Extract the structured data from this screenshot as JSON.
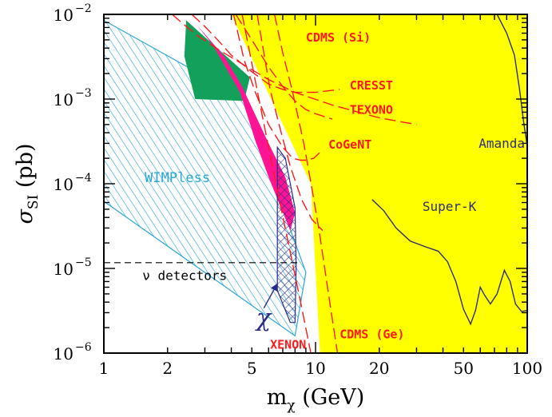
{
  "chart_data": {
    "type": "exclusion-plot",
    "xlabel": {
      "base": "m",
      "sub": "χ",
      "rest": " (GeV)"
    },
    "ylabel": {
      "base": "σ",
      "sub": "SI",
      "rest": " (pb)"
    },
    "x_scale": "log",
    "y_scale": "log",
    "xlim": [
      1,
      100
    ],
    "ylim": [
      1e-06,
      0.01
    ],
    "x_ticks": [
      {
        "v": 1,
        "label": "1"
      },
      {
        "v": 2,
        "label": "2"
      },
      {
        "v": 5,
        "label": "5"
      },
      {
        "v": 10,
        "label": "10"
      },
      {
        "v": 20,
        "label": "20"
      },
      {
        "v": 50,
        "label": "50"
      },
      {
        "v": 100,
        "label": "100"
      }
    ],
    "y_ticks": [
      {
        "v": 1e-06,
        "exp": "−6"
      },
      {
        "v": 1e-05,
        "exp": "−5"
      },
      {
        "v": 0.0001,
        "exp": "−4"
      },
      {
        "v": 0.001,
        "exp": "−3"
      },
      {
        "v": 0.01,
        "exp": "−2"
      }
    ],
    "tick_base": "10",
    "colors": {
      "excluded": "#ffff00",
      "limit_lines": "#ff1a1a",
      "label_red": "#ff1a1a",
      "label_navy": "#2e2e6e",
      "wimpless": "#29a8d8",
      "green_region": "#12a05a",
      "magenta_region": "#ff1493",
      "chi_hatch": "#2a2a8a",
      "neutrino_line": "#000000"
    },
    "excluded_region": [
      [
        2.1,
        0.01
      ],
      [
        4.0,
        0.01
      ],
      [
        9.5,
        0.0001
      ],
      [
        10.5,
        1e-06
      ],
      [
        100,
        1e-06
      ],
      [
        100,
        0.01
      ]
    ],
    "limit_curves": [
      {
        "label": "CDMS (Si)",
        "label_at": [
          9.0,
          0.0048
        ],
        "points": [
          [
            2.1,
            0.01
          ],
          [
            2.4,
            0.0075
          ],
          [
            2.8,
            0.0055
          ],
          [
            3.5,
            0.0038
          ],
          [
            4.5,
            0.0026
          ],
          [
            6.0,
            0.0017
          ],
          [
            8.0,
            0.0012
          ],
          [
            12.0,
            0.00085
          ],
          [
            20.0,
            0.0006
          ],
          [
            30.0,
            0.0005
          ]
        ]
      },
      {
        "label": "CRESST",
        "label_at": [
          14.5,
          0.0013
        ],
        "points": [
          [
            2.6,
            0.01
          ],
          [
            3.0,
            0.0072
          ],
          [
            3.5,
            0.0048
          ],
          [
            4.0,
            0.0033
          ],
          [
            5.0,
            0.0021
          ],
          [
            6.0,
            0.0015
          ],
          [
            7.0,
            0.0013
          ],
          [
            8.0,
            0.0012
          ],
          [
            10.0,
            0.0012
          ],
          [
            13.0,
            0.0013
          ]
        ]
      },
      {
        "label": "TEXONO",
        "label_at": [
          14.5,
          0.00067
        ],
        "points": [
          [
            4.2,
            0.01
          ],
          [
            5.0,
            0.005
          ],
          [
            6.0,
            0.0024
          ],
          [
            7.0,
            0.0014
          ],
          [
            8.0,
            0.00095
          ],
          [
            9.0,
            0.00075
          ],
          [
            10.0,
            0.00067
          ],
          [
            12.0,
            0.00058
          ]
        ]
      },
      {
        "label": "CoGeNT",
        "label_at": [
          11.5,
          0.00026
        ],
        "points": [
          [
            4.1,
            0.01
          ],
          [
            4.6,
            0.0029
          ],
          [
            5.2,
            0.0012
          ],
          [
            6.0,
            0.0005
          ],
          [
            7.0,
            0.00027
          ],
          [
            7.8,
            0.0002
          ],
          [
            8.5,
            0.00019
          ],
          [
            9.0,
            0.00019
          ],
          [
            9.8,
            0.0002
          ],
          [
            10.6,
            0.00024
          ]
        ]
      },
      {
        "label": "",
        "label_at": null,
        "points": [
          [
            5.3,
            0.01
          ],
          [
            5.7,
            0.0035
          ],
          [
            6.1,
            0.0013
          ],
          [
            6.8,
            0.00045
          ],
          [
            7.6,
            0.00016
          ],
          [
            8.6,
            6.5e-05
          ],
          [
            9.6,
            3.8e-05
          ],
          [
            10.8,
            2.8e-05
          ]
        ]
      },
      {
        "label": "CDMS (Ge)",
        "label_at": [
          13.0,
          1.5e-06
        ],
        "points": [
          [
            6.4,
            0.01
          ],
          [
            7.0,
            0.0035
          ],
          [
            7.8,
            0.0012
          ],
          [
            8.8,
            0.0003
          ],
          [
            9.6,
            9e-05
          ],
          [
            10.4,
            2.8e-05
          ],
          [
            11.2,
            8e-06
          ],
          [
            12.0,
            2.5e-06
          ],
          [
            12.7,
            1e-06
          ]
        ]
      },
      {
        "label": "XENON",
        "label_at": [
          6.1,
          1.13e-06
        ],
        "points": [
          [
            4.5,
            0.01
          ],
          [
            5.5,
            0.0008
          ],
          [
            6.5,
            0.0001
          ],
          [
            7.5,
            1.8e-05
          ],
          [
            8.5,
            4e-06
          ],
          [
            9.5,
            1e-06
          ]
        ]
      }
    ],
    "wimpless_region": {
      "label": "WIMPless",
      "label_at": [
        1.56,
        0.000105
      ],
      "polygon": [
        [
          1,
          0.0085
        ],
        [
          4.5,
          0.00105
        ],
        [
          9.0,
          9e-06
        ],
        [
          8.0,
          1.6e-06
        ],
        [
          1,
          6.2e-05
        ]
      ]
    },
    "green_region": [
      [
        2.45,
        0.0085
      ],
      [
        4.9,
        0.0018
      ],
      [
        4.6,
        0.00095
      ],
      [
        2.7,
        0.001
      ],
      [
        2.4,
        0.0032
      ]
    ],
    "magenta_region": [
      [
        2.75,
        0.0075
      ],
      [
        3.7,
        0.0032
      ],
      [
        4.5,
        0.0014
      ],
      [
        6.0,
        0.0003
      ],
      [
        7.2,
        0.00012
      ],
      [
        8.0,
        4.5e-05
      ],
      [
        7.6,
        2.8e-05
      ],
      [
        6.8,
        5.5e-05
      ],
      [
        6.0,
        0.00012
      ],
      [
        5.2,
        0.00032
      ],
      [
        4.4,
        0.0012
      ],
      [
        3.3,
        0.0042
      ]
    ],
    "chi_region": {
      "label": "χ",
      "label_at": [
        5.25,
        2.1e-06
      ],
      "arrow_from": [
        5.7,
        3.4e-06
      ],
      "arrow_to": [
        6.55,
        6.4e-06
      ],
      "polygon": [
        [
          6.6,
          0.00027
        ],
        [
          7.2,
          0.0002
        ],
        [
          8.0,
          5.2e-05
        ],
        [
          8.1,
          1.05e-05
        ],
        [
          8.0,
          2.3e-06
        ],
        [
          7.6,
          2.3e-06
        ],
        [
          6.6,
          5.5e-06
        ]
      ]
    },
    "neutrino_floor": {
      "label": "ν detectors",
      "label_at": [
        1.52,
        7.3e-06
      ],
      "points": [
        [
          1,
          1.17e-05
        ],
        [
          8.3,
          1.17e-05
        ]
      ]
    },
    "amanda": {
      "label": "Amanda",
      "label_at": [
        59.0,
        0.000265
      ],
      "points": [
        [
          72.0,
          0.01
        ],
        [
          80.0,
          0.006
        ],
        [
          87.0,
          0.0033
        ],
        [
          92.0,
          0.0013
        ],
        [
          96.0,
          0.00055
        ],
        [
          100.0,
          0.00028
        ]
      ]
    },
    "superk": {
      "label": "Super-K",
      "label_at": [
        32.0,
        4.8e-05
      ],
      "points": [
        [
          18.5,
          6.5e-05
        ],
        [
          21.0,
          4.8e-05
        ],
        [
          24.0,
          3e-05
        ],
        [
          28.0,
          2.1e-05
        ],
        [
          33.0,
          1.8e-05
        ],
        [
          38.0,
          1.6e-05
        ],
        [
          42.0,
          1.2e-05
        ],
        [
          46.0,
          7e-06
        ],
        [
          50.0,
          3.3e-06
        ],
        [
          54.0,
          2.2e-06
        ],
        [
          57.0,
          3.2e-06
        ],
        [
          60.0,
          6e-06
        ],
        [
          63.0,
          4.8e-06
        ],
        [
          67.0,
          3.8e-06
        ],
        [
          72.0,
          5e-06
        ],
        [
          78.0,
          9.5e-06
        ],
        [
          83.0,
          7e-06
        ],
        [
          88.0,
          3.8e-06
        ],
        [
          94.0,
          3.1e-06
        ],
        [
          100.0,
          3.2e-06
        ]
      ]
    }
  }
}
